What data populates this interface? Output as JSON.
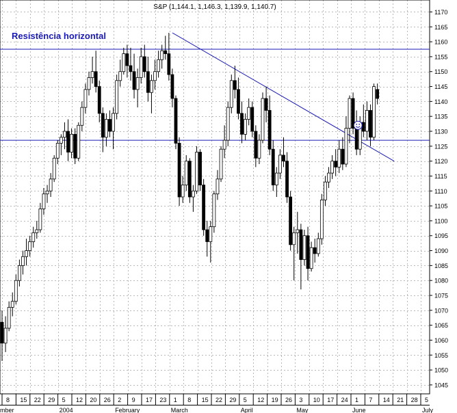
{
  "chart_data": {
    "type": "candlestick",
    "title": "S&P (1,144.1, 1,146.3, 1,139.9, 1,140.7)",
    "annotation": "Resistência horizontal",
    "colors": {
      "grid": "#b8b8b8",
      "lines": "#1a1ab4",
      "bull": "#ffffff",
      "bear": "#000000",
      "annotation": "#1a1ab4"
    },
    "ylim": [
      1042,
      1174
    ],
    "y_ticks": [
      1045,
      1050,
      1055,
      1060,
      1065,
      1070,
      1075,
      1080,
      1085,
      1090,
      1095,
      1100,
      1105,
      1110,
      1115,
      1120,
      1125,
      1130,
      1135,
      1140,
      1145,
      1150,
      1155,
      1160,
      1165,
      1170
    ],
    "x_ticks": [
      "8",
      "15",
      "22",
      "29",
      "5",
      "12",
      "20",
      "26",
      "2",
      "9",
      "17",
      "23",
      "1",
      "8",
      "15",
      "22",
      "29",
      "5",
      "12",
      "19",
      "26",
      "3",
      "10",
      "17",
      "24",
      "1",
      "7",
      "14",
      "21",
      "28",
      "5"
    ],
    "month_labels": [
      {
        "label": "mber",
        "at_tick": 0
      },
      {
        "label": "2004",
        "at_tick": 4
      },
      {
        "label": "February",
        "at_tick": 8
      },
      {
        "label": "March",
        "at_tick": 12
      },
      {
        "label": "April",
        "at_tick": 17
      },
      {
        "label": "May",
        "at_tick": 21
      },
      {
        "label": "June",
        "at_tick": 25
      },
      {
        "label": "July",
        "at_tick": 30
      }
    ],
    "horizontal_lines": [
      {
        "name": "resistance-line",
        "value": 1157.5
      },
      {
        "name": "support-line",
        "value": 1127
      }
    ],
    "trendline": {
      "name": "downtrend-line",
      "start": {
        "tick": 12.2,
        "value": 1163
      },
      "end": {
        "tick": 28.1,
        "value": 1120
      }
    },
    "smiley": {
      "tick": 25.5,
      "value": 1132
    },
    "candles": [
      {
        "o": 1066,
        "h": 1070,
        "l": 1053,
        "c": 1059
      },
      {
        "o": 1059,
        "h": 1068,
        "l": 1056,
        "c": 1064
      },
      {
        "o": 1064,
        "h": 1073,
        "l": 1063,
        "c": 1071
      },
      {
        "o": 1071,
        "h": 1076,
        "l": 1068,
        "c": 1073
      },
      {
        "o": 1073,
        "h": 1082,
        "l": 1072,
        "c": 1080
      },
      {
        "o": 1080,
        "h": 1087,
        "l": 1078,
        "c": 1085
      },
      {
        "o": 1085,
        "h": 1090,
        "l": 1082,
        "c": 1088
      },
      {
        "o": 1088,
        "h": 1094,
        "l": 1085,
        "c": 1090
      },
      {
        "o": 1090,
        "h": 1095,
        "l": 1088,
        "c": 1093
      },
      {
        "o": 1093,
        "h": 1098,
        "l": 1091,
        "c": 1096
      },
      {
        "o": 1096,
        "h": 1100,
        "l": 1094,
        "c": 1097
      },
      {
        "o": 1097,
        "h": 1106,
        "l": 1096,
        "c": 1104
      },
      {
        "o": 1104,
        "h": 1111,
        "l": 1102,
        "c": 1109
      },
      {
        "o": 1109,
        "h": 1112,
        "l": 1106,
        "c": 1110
      },
      {
        "o": 1110,
        "h": 1116,
        "l": 1108,
        "c": 1114
      },
      {
        "o": 1114,
        "h": 1122,
        "l": 1113,
        "c": 1121
      },
      {
        "o": 1121,
        "h": 1127,
        "l": 1119,
        "c": 1126
      },
      {
        "o": 1126,
        "h": 1129,
        "l": 1122,
        "c": 1128
      },
      {
        "o": 1128,
        "h": 1133,
        "l": 1124,
        "c": 1130
      },
      {
        "o": 1130,
        "h": 1134,
        "l": 1120,
        "c": 1123
      },
      {
        "o": 1123,
        "h": 1131,
        "l": 1121,
        "c": 1129
      },
      {
        "o": 1129,
        "h": 1131,
        "l": 1119,
        "c": 1121
      },
      {
        "o": 1121,
        "h": 1133,
        "l": 1120,
        "c": 1132
      },
      {
        "o": 1132,
        "h": 1140,
        "l": 1130,
        "c": 1138
      },
      {
        "o": 1138,
        "h": 1146,
        "l": 1136,
        "c": 1144
      },
      {
        "o": 1144,
        "h": 1150,
        "l": 1142,
        "c": 1148
      },
      {
        "o": 1148,
        "h": 1155,
        "l": 1146,
        "c": 1150
      },
      {
        "o": 1150,
        "h": 1157,
        "l": 1143,
        "c": 1145
      },
      {
        "o": 1145,
        "h": 1147,
        "l": 1133,
        "c": 1136
      },
      {
        "o": 1136,
        "h": 1138,
        "l": 1123,
        "c": 1128
      },
      {
        "o": 1128,
        "h": 1136,
        "l": 1125,
        "c": 1134
      },
      {
        "o": 1134,
        "h": 1137,
        "l": 1128,
        "c": 1130
      },
      {
        "o": 1130,
        "h": 1138,
        "l": 1124,
        "c": 1136
      },
      {
        "o": 1136,
        "h": 1149,
        "l": 1134,
        "c": 1147
      },
      {
        "o": 1147,
        "h": 1154,
        "l": 1145,
        "c": 1150
      },
      {
        "o": 1150,
        "h": 1158,
        "l": 1149,
        "c": 1156
      },
      {
        "o": 1156,
        "h": 1159,
        "l": 1148,
        "c": 1152
      },
      {
        "o": 1152,
        "h": 1158,
        "l": 1147,
        "c": 1150
      },
      {
        "o": 1150,
        "h": 1156,
        "l": 1141,
        "c": 1144
      },
      {
        "o": 1144,
        "h": 1151,
        "l": 1138,
        "c": 1148
      },
      {
        "o": 1148,
        "h": 1158,
        "l": 1146,
        "c": 1155
      },
      {
        "o": 1155,
        "h": 1159,
        "l": 1148,
        "c": 1150
      },
      {
        "o": 1150,
        "h": 1155,
        "l": 1140,
        "c": 1143
      },
      {
        "o": 1143,
        "h": 1149,
        "l": 1136,
        "c": 1147
      },
      {
        "o": 1147,
        "h": 1154,
        "l": 1144,
        "c": 1150
      },
      {
        "o": 1150,
        "h": 1157,
        "l": 1148,
        "c": 1154
      },
      {
        "o": 1154,
        "h": 1159,
        "l": 1151,
        "c": 1157
      },
      {
        "o": 1157,
        "h": 1162,
        "l": 1154,
        "c": 1156
      },
      {
        "o": 1156,
        "h": 1163,
        "l": 1147,
        "c": 1149
      },
      {
        "o": 1149,
        "h": 1151,
        "l": 1138,
        "c": 1141
      },
      {
        "o": 1141,
        "h": 1142,
        "l": 1124,
        "c": 1126
      },
      {
        "o": 1126,
        "h": 1128,
        "l": 1105,
        "c": 1108
      },
      {
        "o": 1108,
        "h": 1115,
        "l": 1106,
        "c": 1112
      },
      {
        "o": 1112,
        "h": 1122,
        "l": 1110,
        "c": 1120
      },
      {
        "o": 1120,
        "h": 1121,
        "l": 1106,
        "c": 1108
      },
      {
        "o": 1108,
        "h": 1112,
        "l": 1103,
        "c": 1110
      },
      {
        "o": 1110,
        "h": 1125,
        "l": 1109,
        "c": 1123
      },
      {
        "o": 1123,
        "h": 1124,
        "l": 1110,
        "c": 1112
      },
      {
        "o": 1112,
        "h": 1114,
        "l": 1095,
        "c": 1097
      },
      {
        "o": 1097,
        "h": 1100,
        "l": 1088,
        "c": 1093
      },
      {
        "o": 1093,
        "h": 1100,
        "l": 1086,
        "c": 1098
      },
      {
        "o": 1098,
        "h": 1110,
        "l": 1096,
        "c": 1109
      },
      {
        "o": 1109,
        "h": 1117,
        "l": 1107,
        "c": 1114
      },
      {
        "o": 1114,
        "h": 1125,
        "l": 1113,
        "c": 1124
      },
      {
        "o": 1124,
        "h": 1132,
        "l": 1121,
        "c": 1127
      },
      {
        "o": 1127,
        "h": 1140,
        "l": 1125,
        "c": 1138
      },
      {
        "o": 1138,
        "h": 1149,
        "l": 1136,
        "c": 1147
      },
      {
        "o": 1147,
        "h": 1152,
        "l": 1141,
        "c": 1144
      },
      {
        "o": 1144,
        "h": 1148,
        "l": 1134,
        "c": 1136
      },
      {
        "o": 1136,
        "h": 1140,
        "l": 1126,
        "c": 1129
      },
      {
        "o": 1129,
        "h": 1136,
        "l": 1127,
        "c": 1134
      },
      {
        "o": 1134,
        "h": 1141,
        "l": 1132,
        "c": 1138
      },
      {
        "o": 1138,
        "h": 1140,
        "l": 1128,
        "c": 1130
      },
      {
        "o": 1130,
        "h": 1132,
        "l": 1118,
        "c": 1121
      },
      {
        "o": 1121,
        "h": 1129,
        "l": 1119,
        "c": 1127
      },
      {
        "o": 1127,
        "h": 1143,
        "l": 1126,
        "c": 1141
      },
      {
        "o": 1141,
        "h": 1145,
        "l": 1133,
        "c": 1137
      },
      {
        "o": 1137,
        "h": 1142,
        "l": 1122,
        "c": 1124
      },
      {
        "o": 1124,
        "h": 1127,
        "l": 1110,
        "c": 1112
      },
      {
        "o": 1112,
        "h": 1118,
        "l": 1108,
        "c": 1116
      },
      {
        "o": 1116,
        "h": 1124,
        "l": 1114,
        "c": 1122
      },
      {
        "o": 1122,
        "h": 1128,
        "l": 1118,
        "c": 1120
      },
      {
        "o": 1120,
        "h": 1123,
        "l": 1106,
        "c": 1108
      },
      {
        "o": 1108,
        "h": 1110,
        "l": 1090,
        "c": 1092
      },
      {
        "o": 1092,
        "h": 1098,
        "l": 1080,
        "c": 1096
      },
      {
        "o": 1096,
        "h": 1103,
        "l": 1089,
        "c": 1097
      },
      {
        "o": 1097,
        "h": 1099,
        "l": 1077,
        "c": 1087
      },
      {
        "o": 1087,
        "h": 1097,
        "l": 1085,
        "c": 1095
      },
      {
        "o": 1095,
        "h": 1098,
        "l": 1080,
        "c": 1084
      },
      {
        "o": 1084,
        "h": 1093,
        "l": 1083,
        "c": 1091
      },
      {
        "o": 1091,
        "h": 1094,
        "l": 1086,
        "c": 1089
      },
      {
        "o": 1089,
        "h": 1096,
        "l": 1088,
        "c": 1094
      },
      {
        "o": 1094,
        "h": 1109,
        "l": 1092,
        "c": 1107
      },
      {
        "o": 1107,
        "h": 1115,
        "l": 1105,
        "c": 1113
      },
      {
        "o": 1113,
        "h": 1118,
        "l": 1111,
        "c": 1116
      },
      {
        "o": 1116,
        "h": 1122,
        "l": 1114,
        "c": 1120
      },
      {
        "o": 1120,
        "h": 1124,
        "l": 1115,
        "c": 1118
      },
      {
        "o": 1118,
        "h": 1127,
        "l": 1116,
        "c": 1124
      },
      {
        "o": 1124,
        "h": 1128,
        "l": 1117,
        "c": 1119
      },
      {
        "o": 1119,
        "h": 1135,
        "l": 1118,
        "c": 1131
      },
      {
        "o": 1131,
        "h": 1142,
        "l": 1126,
        "c": 1141
      },
      {
        "o": 1141,
        "h": 1143,
        "l": 1129,
        "c": 1131
      },
      {
        "o": 1131,
        "h": 1137,
        "l": 1122,
        "c": 1124
      },
      {
        "o": 1124,
        "h": 1135,
        "l": 1122,
        "c": 1133
      },
      {
        "o": 1133,
        "h": 1139,
        "l": 1128,
        "c": 1130
      },
      {
        "o": 1130,
        "h": 1140,
        "l": 1127,
        "c": 1137
      },
      {
        "o": 1137,
        "h": 1139,
        "l": 1125,
        "c": 1128
      },
      {
        "o": 1128,
        "h": 1146,
        "l": 1127,
        "c": 1145
      },
      {
        "o": 1144,
        "h": 1146,
        "l": 1139,
        "c": 1141
      }
    ]
  }
}
